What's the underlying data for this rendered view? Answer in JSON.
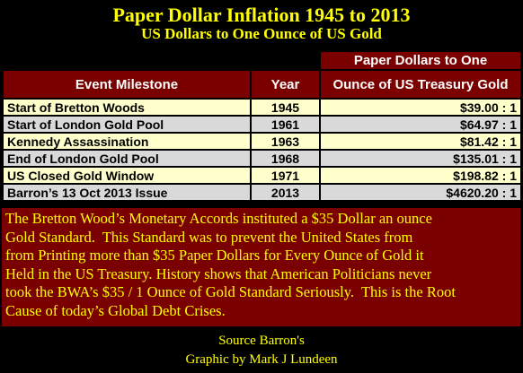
{
  "header": {
    "title": "Paper Dollar Inflation 1945 to 2013",
    "subtitle": "US Dollars to One Ounce of US Gold"
  },
  "table": {
    "super_header": "Paper Dollars to One",
    "columns": [
      "Event Milestone",
      "Year",
      "Ounce of US Treasury Gold"
    ],
    "rows": [
      [
        "Start of Bretton Woods",
        "1945",
        "$39.00 : 1"
      ],
      [
        "Start of London Gold Pool",
        "1961",
        "$64.97 : 1"
      ],
      [
        "Kennedy Assassination",
        "1963",
        "$81.42 : 1"
      ],
      [
        "End of London Gold Pool",
        "1968",
        "$135.01 : 1"
      ],
      [
        "US Closed Gold Window",
        "1971",
        "$198.82 : 1"
      ],
      [
        "Barron’s 13 Oct  2013 Issue",
        "2013",
        "$4620.20 : 1"
      ]
    ]
  },
  "body": {
    "lines": [
      "The Bretton Wood’s Monetary Accords instituted a $35 Dollar an ounce",
      "Gold Standard.  This Standard was to prevent the United States from",
      "from Printing more than $35 Paper Dollars for Every Ounce of Gold it",
      "Held in the US Treasury. History shows that American Politicians never",
      "took the BWA’s $35 / 1 Ounce of Gold Standard Seriously.  This is the Root",
      "Cause of today’s Global Debt Crises."
    ]
  },
  "footer": {
    "lines": [
      "Source Barron's",
      "Graphic by Mark J Lundeen"
    ]
  }
}
